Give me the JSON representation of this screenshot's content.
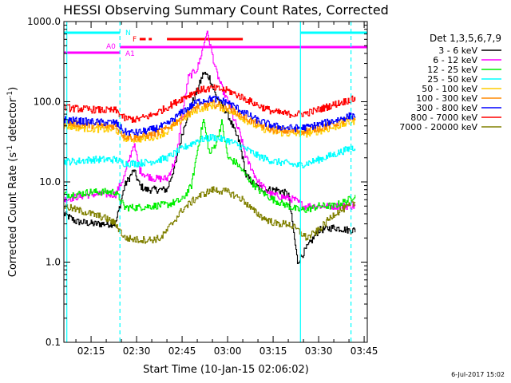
{
  "chart_data": {
    "type": "line",
    "title": "HESSI Observing Summary Count Rates, Corrected",
    "xlabel": "Start Time (10-Jan-15 02:06:02)",
    "ylabel_prefix": "Corrected Count Rate (s",
    "ylabel_sup1": "-1",
    "ylabel_mid": " detector",
    "ylabel_sup2": "-1",
    "ylabel_suffix": ")",
    "ylabel": "Corrected Count Rate (s-1 detector-1)",
    "yscale": "log",
    "ylim": [
      0.1,
      1000
    ],
    "xlim": [
      "02:06:02",
      "03:46:02"
    ],
    "y_tick_labels": [
      "0.1",
      "1.0",
      "10.0",
      "100.0",
      "1000.0"
    ],
    "y_tick_values": [
      0.1,
      1,
      10,
      100,
      1000
    ],
    "x_tick_labels": [
      "02:15",
      "02:30",
      "02:45",
      "03:00",
      "03:15",
      "03:30",
      "03:45"
    ],
    "x_tick_values": [
      "02:15",
      "02:30",
      "02:45",
      "03:00",
      "03:15",
      "03:30",
      "03:45"
    ],
    "grid": false,
    "legend_title": "Det 1,3,5,6,7,9",
    "legend_position": "right",
    "timestamp": "6-Jul-2017 15:02",
    "series": [
      {
        "name": "3 - 6 keV",
        "color": "#000000",
        "x": [
          "02:06",
          "02:10",
          "02:16",
          "02:20",
          "02:23",
          "02:26",
          "02:29",
          "02:31",
          "02:33",
          "02:36",
          "02:40",
          "02:43",
          "02:45",
          "02:47",
          "02:50",
          "02:52",
          "02:54",
          "02:56",
          "02:58",
          "03:00",
          "03:02",
          "03:04",
          "03:06",
          "03:09",
          "03:12",
          "03:16",
          "03:20",
          "03:23",
          "03:26",
          "03:30",
          "03:35",
          "03:40",
          "03:42"
        ],
        "y": [
          4,
          3.2,
          3,
          3,
          3,
          9,
          14,
          9,
          8,
          8,
          8,
          18,
          40,
          75,
          140,
          230,
          200,
          120,
          90,
          70,
          45,
          30,
          12,
          9,
          8,
          8,
          7,
          1,
          1.5,
          2.5,
          2.7,
          2.5,
          2.5
        ]
      },
      {
        "name": "6 - 12 keV",
        "color": "#ff00ff",
        "x": [
          "02:06",
          "02:10",
          "02:15",
          "02:20",
          "02:23",
          "02:26",
          "02:29",
          "02:31",
          "02:33",
          "02:36",
          "02:40",
          "02:43",
          "02:45",
          "02:47",
          "02:50",
          "02:52",
          "02:53",
          "02:54",
          "02:56",
          "02:58",
          "03:00",
          "03:02",
          "03:04",
          "03:06",
          "03:10",
          "03:14",
          "03:18",
          "03:22",
          "03:25",
          "03:30",
          "03:35",
          "03:40",
          "03:42"
        ],
        "y": [
          6,
          6.5,
          7,
          7,
          7,
          12,
          30,
          14,
          12,
          11,
          11,
          20,
          70,
          200,
          260,
          500,
          750,
          550,
          250,
          150,
          100,
          60,
          40,
          20,
          10,
          7,
          6.5,
          6,
          5,
          5,
          5,
          5,
          5
        ]
      },
      {
        "name": "12 - 25 keV",
        "color": "#00ee00",
        "x": [
          "02:06",
          "02:10",
          "02:15",
          "02:20",
          "02:23",
          "02:26",
          "02:30",
          "02:35",
          "02:40",
          "02:45",
          "02:48",
          "02:50",
          "02:52",
          "02:54",
          "02:56",
          "02:58",
          "03:00",
          "03:03",
          "03:06",
          "03:10",
          "03:15",
          "03:20",
          "03:23",
          "03:26",
          "03:30",
          "03:35",
          "03:40",
          "03:42"
        ],
        "y": [
          7,
          7,
          7.5,
          7.5,
          7.5,
          4.8,
          4.8,
          5,
          5.2,
          6,
          9,
          25,
          60,
          22,
          30,
          55,
          20,
          17,
          12,
          8,
          6,
          5,
          4.5,
          4.5,
          5,
          5,
          6,
          7
        ]
      },
      {
        "name": "25 - 50 keV",
        "color": "#00ffff",
        "x": [
          "02:06",
          "02:10",
          "02:15",
          "02:20",
          "02:23",
          "02:26",
          "02:30",
          "02:35",
          "02:40",
          "02:45",
          "02:50",
          "02:55",
          "03:00",
          "03:05",
          "03:10",
          "03:15",
          "03:20",
          "03:23",
          "03:26",
          "03:30",
          "03:35",
          "03:40",
          "03:42"
        ],
        "y": [
          18,
          18,
          19,
          19,
          19,
          17,
          17,
          18,
          20,
          26,
          33,
          36,
          33,
          27,
          21,
          18,
          17,
          16,
          17,
          19,
          22,
          26,
          27
        ]
      },
      {
        "name": "50 - 100 keV",
        "color": "#ffcc00",
        "x": [
          "02:06",
          "02:10",
          "02:15",
          "02:20",
          "02:23",
          "02:26",
          "02:30",
          "02:35",
          "02:40",
          "02:45",
          "02:50",
          "02:55",
          "03:00",
          "03:05",
          "03:10",
          "03:15",
          "03:20",
          "03:23",
          "03:26",
          "03:30",
          "03:35",
          "03:40",
          "03:42"
        ],
        "y": [
          50,
          48,
          46,
          45,
          45,
          35,
          34,
          36,
          42,
          60,
          80,
          90,
          80,
          62,
          48,
          42,
          40,
          40,
          40,
          43,
          48,
          55,
          58
        ]
      },
      {
        "name": "100 - 300 keV",
        "color": "#ff8800",
        "x": [
          "02:06",
          "02:10",
          "02:15",
          "02:20",
          "02:23",
          "02:26",
          "02:30",
          "02:35",
          "02:40",
          "02:45",
          "02:50",
          "02:55",
          "03:00",
          "03:05",
          "03:10",
          "03:15",
          "03:20",
          "03:23",
          "03:26",
          "03:30",
          "03:35",
          "03:40",
          "03:42"
        ],
        "y": [
          55,
          53,
          51,
          50,
          50,
          37,
          36,
          39,
          46,
          65,
          88,
          95,
          85,
          66,
          52,
          45,
          43,
          43,
          44,
          47,
          53,
          60,
          63
        ]
      },
      {
        "name": "300 - 800 keV",
        "color": "#0000ff",
        "x": [
          "02:06",
          "02:10",
          "02:15",
          "02:20",
          "02:23",
          "02:26",
          "02:30",
          "02:35",
          "02:40",
          "02:45",
          "02:50",
          "02:55",
          "03:00",
          "03:05",
          "03:10",
          "03:15",
          "03:20",
          "03:23",
          "03:26",
          "03:30",
          "03:35",
          "03:40",
          "03:42"
        ],
        "y": [
          60,
          58,
          56,
          55,
          55,
          42,
          41,
          45,
          52,
          75,
          100,
          110,
          98,
          75,
          58,
          50,
          47,
          47,
          48,
          52,
          58,
          66,
          68
        ]
      },
      {
        "name": "800 - 7000 keV",
        "color": "#ff0000",
        "x": [
          "02:06",
          "02:10",
          "02:15",
          "02:20",
          "02:23",
          "02:26",
          "02:30",
          "02:35",
          "02:40",
          "02:45",
          "02:50",
          "02:55",
          "03:00",
          "03:05",
          "03:10",
          "03:15",
          "03:20",
          "03:23",
          "03:26",
          "03:30",
          "03:35",
          "03:40",
          "03:42"
        ],
        "y": [
          85,
          82,
          80,
          78,
          78,
          62,
          60,
          68,
          85,
          110,
          138,
          148,
          138,
          112,
          90,
          75,
          70,
          70,
          72,
          80,
          92,
          105,
          108
        ]
      },
      {
        "name": "7000 - 20000 keV",
        "color": "#808000",
        "x": [
          "02:06",
          "02:10",
          "02:15",
          "02:20",
          "02:23",
          "02:26",
          "02:30",
          "02:35",
          "02:38",
          "02:40",
          "02:45",
          "02:50",
          "02:55",
          "03:00",
          "03:05",
          "03:08",
          "03:12",
          "03:16",
          "03:20",
          "03:23",
          "03:26",
          "03:30",
          "03:35",
          "03:40",
          "03:42"
        ],
        "y": [
          5,
          4.5,
          4,
          3.5,
          3,
          2,
          1.9,
          1.9,
          2,
          2.5,
          4.5,
          6.5,
          8,
          7.5,
          6,
          4.5,
          3.5,
          3,
          3,
          2.5,
          2,
          2.5,
          4,
          5,
          5.5
        ]
      }
    ],
    "markers": [
      {
        "label": "N",
        "color": "#00ffff",
        "segments": [
          [
            "02:06:02",
            "02:24:30"
          ],
          [
            "03:24:00",
            "03:46:02"
          ]
        ]
      },
      {
        "label": "F",
        "color": "#ff0000",
        "segments": [
          [
            "02:31:00",
            "02:33:00"
          ],
          [
            "02:40:00",
            "03:05:00"
          ],
          [
            "02:34:00",
            "02:35:00"
          ]
        ]
      },
      {
        "label": "A0",
        "color": "#ff00ff",
        "segments": [
          [
            "02:06:02",
            "02:24:30"
          ]
        ]
      },
      {
        "label": "A1",
        "color": "#ff00ff",
        "segments": [
          [
            "02:24:30",
            "03:46:02"
          ]
        ]
      }
    ],
    "vertical_lines": [
      {
        "x": "02:07:00",
        "color": "#00ffff",
        "style": "solid"
      },
      {
        "x": "02:24:30",
        "color": "#00ffff",
        "style": "dashed"
      },
      {
        "x": "03:24:00",
        "color": "#00ffff",
        "style": "solid"
      },
      {
        "x": "03:40:40",
        "color": "#00ffff",
        "style": "dashed"
      }
    ]
  }
}
